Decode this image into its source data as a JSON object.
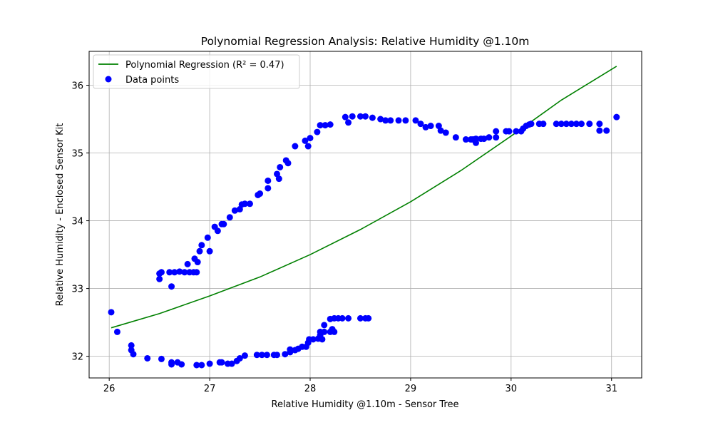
{
  "chart_data": {
    "type": "scatter",
    "title": "Polynomial Regression Analysis: Relative Humidity @1.10m",
    "xlabel": "Relative Humidity @1.10m - Sensor Tree",
    "ylabel": "Relative Humidity - Enclosed Sensor Kit",
    "xlim": [
      25.8,
      31.3
    ],
    "ylim": [
      31.68,
      36.5
    ],
    "xticks": [
      26,
      27,
      28,
      29,
      30,
      31
    ],
    "yticks": [
      32,
      33,
      34,
      35,
      36
    ],
    "grid": true,
    "legend_position": "top-left",
    "colors": {
      "points": "#0000ff",
      "fit": "#008000",
      "grid": "#b0b0b0"
    },
    "fit": {
      "name": "Polynomial Regression (R² = 0.47)",
      "x": [
        26.02,
        26.5,
        27.0,
        27.5,
        28.0,
        28.5,
        29.0,
        29.5,
        30.0,
        30.5,
        31.05
      ],
      "y": [
        32.42,
        32.63,
        32.89,
        33.17,
        33.5,
        33.87,
        34.28,
        34.74,
        35.25,
        35.78,
        36.28
      ]
    },
    "series": [
      {
        "name": "Data points",
        "points": [
          [
            26.02,
            32.65
          ],
          [
            26.08,
            32.36
          ],
          [
            26.22,
            32.16
          ],
          [
            26.22,
            32.09
          ],
          [
            26.24,
            32.03
          ],
          [
            26.38,
            31.97
          ],
          [
            26.52,
            31.96
          ],
          [
            26.62,
            31.91
          ],
          [
            26.62,
            31.88
          ],
          [
            26.68,
            31.91
          ],
          [
            26.72,
            31.88
          ],
          [
            26.87,
            31.87
          ],
          [
            26.92,
            31.87
          ],
          [
            27.0,
            31.89
          ],
          [
            27.1,
            31.91
          ],
          [
            27.12,
            31.91
          ],
          [
            27.18,
            31.89
          ],
          [
            27.22,
            31.89
          ],
          [
            27.27,
            31.93
          ],
          [
            27.3,
            31.97
          ],
          [
            27.35,
            32.01
          ],
          [
            27.47,
            32.02
          ],
          [
            27.52,
            32.02
          ],
          [
            27.57,
            32.02
          ],
          [
            27.64,
            32.02
          ],
          [
            27.67,
            32.02
          ],
          [
            27.75,
            32.03
          ],
          [
            27.8,
            32.06
          ],
          [
            27.8,
            32.1
          ],
          [
            27.85,
            32.09
          ],
          [
            27.88,
            32.11
          ],
          [
            27.92,
            32.14
          ],
          [
            27.96,
            32.14
          ],
          [
            27.98,
            32.2
          ],
          [
            27.99,
            32.25
          ],
          [
            28.03,
            32.25
          ],
          [
            28.08,
            32.26
          ],
          [
            28.1,
            32.31
          ],
          [
            28.12,
            32.25
          ],
          [
            28.1,
            32.36
          ],
          [
            28.14,
            32.36
          ],
          [
            28.2,
            32.36
          ],
          [
            28.22,
            32.4
          ],
          [
            28.24,
            32.36
          ],
          [
            28.14,
            32.46
          ],
          [
            28.2,
            32.55
          ],
          [
            28.24,
            32.56
          ],
          [
            28.28,
            32.56
          ],
          [
            28.32,
            32.56
          ],
          [
            28.38,
            32.56
          ],
          [
            28.5,
            32.56
          ],
          [
            28.55,
            32.56
          ],
          [
            28.58,
            32.56
          ],
          [
            26.5,
            33.14
          ],
          [
            26.5,
            33.22
          ],
          [
            26.52,
            33.24
          ],
          [
            26.6,
            33.24
          ],
          [
            26.65,
            33.24
          ],
          [
            26.7,
            33.25
          ],
          [
            26.75,
            33.24
          ],
          [
            26.8,
            33.24
          ],
          [
            26.84,
            33.24
          ],
          [
            26.87,
            33.24
          ],
          [
            26.62,
            33.03
          ],
          [
            26.78,
            33.36
          ],
          [
            26.85,
            33.44
          ],
          [
            26.88,
            33.39
          ],
          [
            26.9,
            33.55
          ],
          [
            26.92,
            33.64
          ],
          [
            26.98,
            33.75
          ],
          [
            27.0,
            33.55
          ],
          [
            27.05,
            33.91
          ],
          [
            27.08,
            33.85
          ],
          [
            27.12,
            33.95
          ],
          [
            27.14,
            33.95
          ],
          [
            27.2,
            34.05
          ],
          [
            27.25,
            34.15
          ],
          [
            27.3,
            34.17
          ],
          [
            27.32,
            34.24
          ],
          [
            27.35,
            34.25
          ],
          [
            27.4,
            34.25
          ],
          [
            27.48,
            34.38
          ],
          [
            27.5,
            34.4
          ],
          [
            27.58,
            34.48
          ],
          [
            27.58,
            34.59
          ],
          [
            27.67,
            34.69
          ],
          [
            27.69,
            34.62
          ],
          [
            27.7,
            34.79
          ],
          [
            27.76,
            34.89
          ],
          [
            27.78,
            34.85
          ],
          [
            27.85,
            35.1
          ],
          [
            27.95,
            35.18
          ],
          [
            27.98,
            35.1
          ],
          [
            28.0,
            35.22
          ],
          [
            28.07,
            35.31
          ],
          [
            28.1,
            35.41
          ],
          [
            28.15,
            35.41
          ],
          [
            28.2,
            35.42
          ],
          [
            28.35,
            35.53
          ],
          [
            28.38,
            35.45
          ],
          [
            28.42,
            35.54
          ],
          [
            28.5,
            35.54
          ],
          [
            28.55,
            35.54
          ],
          [
            28.62,
            35.52
          ],
          [
            28.7,
            35.5
          ],
          [
            28.75,
            35.48
          ],
          [
            28.8,
            35.48
          ],
          [
            28.88,
            35.48
          ],
          [
            28.95,
            35.48
          ],
          [
            29.05,
            35.48
          ],
          [
            29.1,
            35.43
          ],
          [
            29.15,
            35.38
          ],
          [
            29.2,
            35.4
          ],
          [
            29.28,
            35.4
          ],
          [
            29.3,
            35.33
          ],
          [
            29.35,
            35.3
          ],
          [
            29.45,
            35.23
          ],
          [
            29.55,
            35.2
          ],
          [
            29.6,
            35.2
          ],
          [
            29.62,
            35.2
          ],
          [
            29.65,
            35.21
          ],
          [
            29.65,
            35.15
          ],
          [
            29.7,
            35.21
          ],
          [
            29.73,
            35.21
          ],
          [
            29.78,
            35.23
          ],
          [
            29.85,
            35.23
          ],
          [
            29.85,
            35.32
          ],
          [
            29.95,
            35.32
          ],
          [
            29.98,
            35.32
          ],
          [
            30.05,
            35.32
          ],
          [
            30.1,
            35.32
          ],
          [
            30.12,
            35.36
          ],
          [
            30.15,
            35.4
          ],
          [
            30.18,
            35.42
          ],
          [
            30.2,
            35.43
          ],
          [
            30.28,
            35.43
          ],
          [
            30.32,
            35.43
          ],
          [
            30.45,
            35.43
          ],
          [
            30.5,
            35.43
          ],
          [
            30.55,
            35.43
          ],
          [
            30.6,
            35.43
          ],
          [
            30.65,
            35.43
          ],
          [
            30.7,
            35.43
          ],
          [
            30.78,
            35.43
          ],
          [
            30.88,
            35.43
          ],
          [
            30.88,
            35.33
          ],
          [
            30.95,
            35.33
          ],
          [
            31.05,
            35.53
          ]
        ]
      }
    ]
  }
}
